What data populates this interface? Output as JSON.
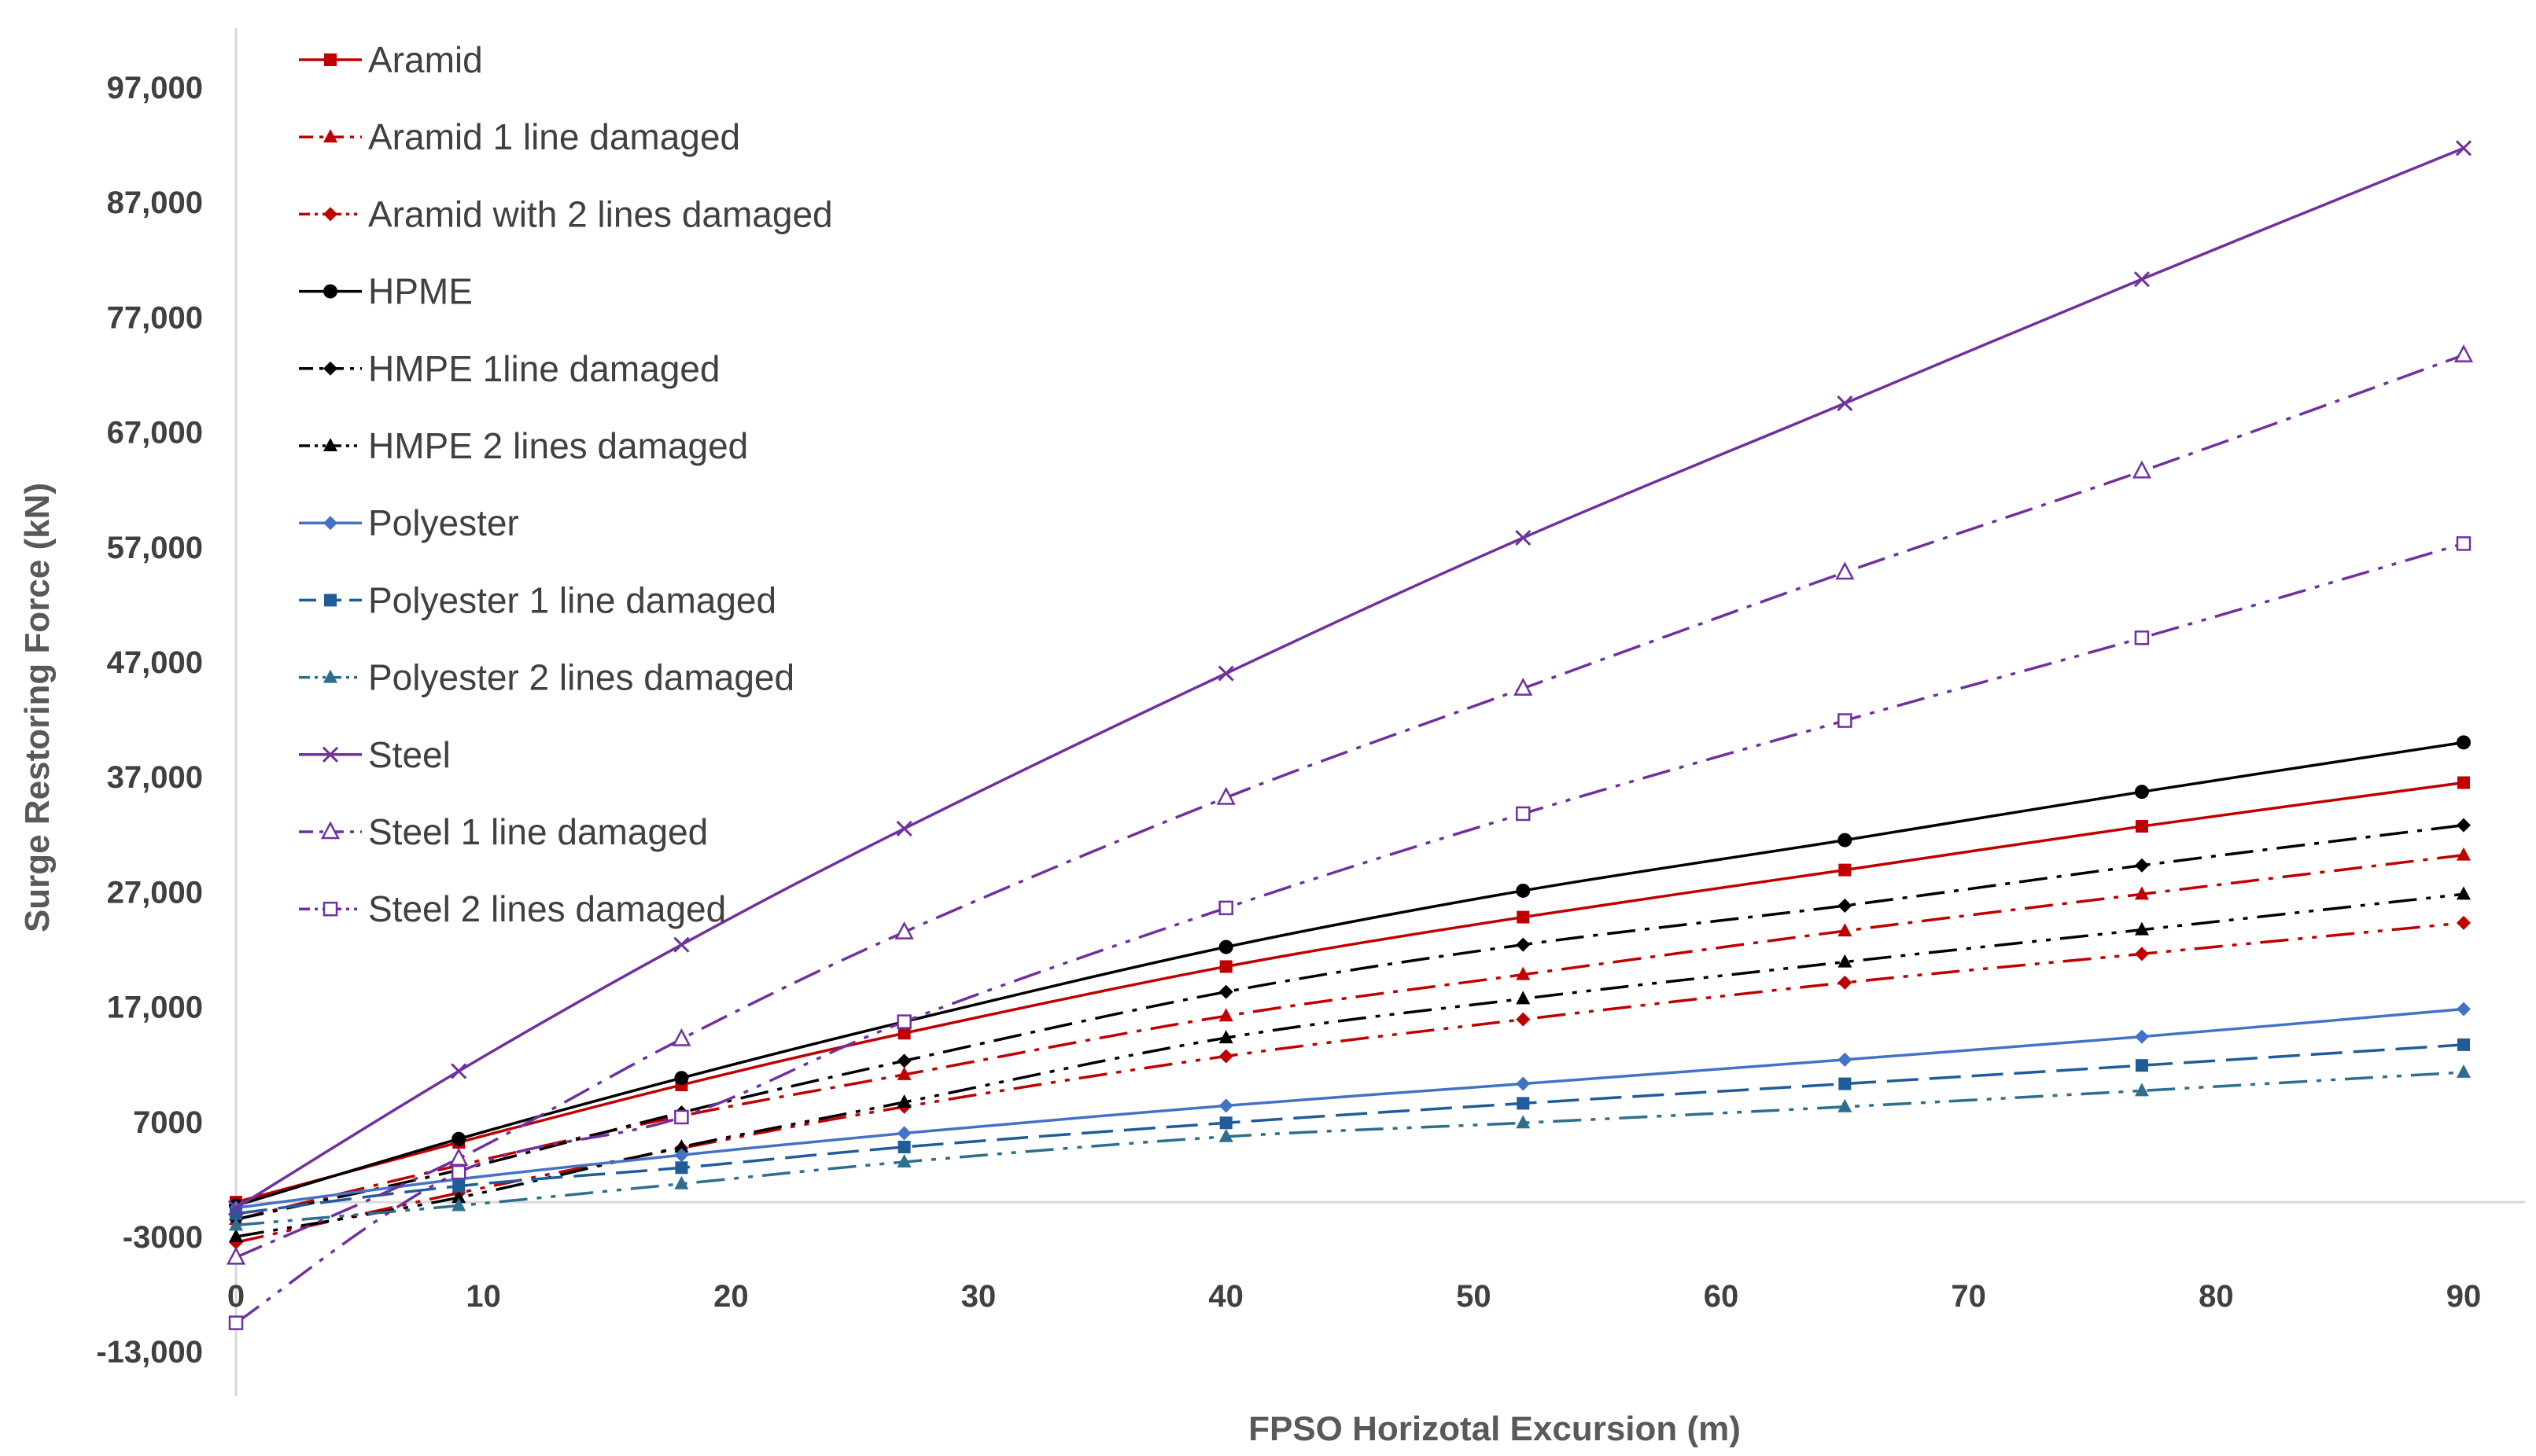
{
  "chart_data": {
    "type": "line",
    "title": "",
    "xlabel": "FPSO Horizotal Excursion (m)",
    "ylabel": "Surge Restoring Force (kN)",
    "xlim": [
      0,
      92
    ],
    "ylim": [
      -13000,
      104000
    ],
    "x_ticks": [
      0,
      10,
      20,
      30,
      40,
      50,
      60,
      70,
      80,
      90
    ],
    "x_tick_labels": [
      "0",
      "10",
      "20",
      "30",
      "40",
      "50",
      "60",
      "70",
      "80",
      "90"
    ],
    "y_ticks": [
      97000,
      87000,
      77000,
      67000,
      57000,
      47000,
      37000,
      27000,
      17000,
      7000,
      -3000,
      -13000
    ],
    "y_tick_labels": [
      "97,000",
      "87,000",
      "77,000",
      "67,000",
      "57,000",
      "47,000",
      "37,000",
      "27,000",
      "17,000",
      "7000",
      "-3000",
      "-13,000"
    ],
    "grid": false,
    "legend_position": "top-left",
    "x": [
      0,
      9,
      18,
      27,
      40,
      52,
      65,
      77,
      90
    ],
    "series": [
      {
        "name": "Aramid",
        "color": "#c00000",
        "dash": "solid",
        "marker": "square",
        "values": [
          0,
          5200,
          10200,
          14700,
          20500,
          24800,
          28900,
          32700,
          36500
        ]
      },
      {
        "name": "Aramid 1 line damaged",
        "color": "#c00000",
        "dash": "dashdot",
        "marker": "triangle",
        "values": [
          -1500,
          3200,
          7500,
          11100,
          16200,
          19800,
          23600,
          26800,
          30200
        ]
      },
      {
        "name": "Aramid with 2 lines damaged",
        "color": "#c00000",
        "dash": "dashdotdot",
        "marker": "diamond",
        "values": [
          -3500,
          800,
          4700,
          8300,
          12700,
          15900,
          19100,
          21600,
          24300
        ]
      },
      {
        "name": "HPME",
        "color": "#000000",
        "dash": "solid",
        "marker": "circle",
        "values": [
          -300,
          5500,
          10800,
          15700,
          22200,
          27100,
          31500,
          35700,
          40000
        ]
      },
      {
        "name": "HMPE 1line damaged",
        "color": "#000000",
        "dash": "dashdot",
        "marker": "diamond",
        "values": [
          -1500,
          2800,
          7800,
          12300,
          18300,
          22400,
          25800,
          29300,
          32800
        ]
      },
      {
        "name": "HMPE 2 lines damaged",
        "color": "#000000",
        "dash": "dashdotdot",
        "marker": "triangle",
        "values": [
          -3000,
          400,
          4800,
          8700,
          14300,
          17700,
          20900,
          23700,
          26800
        ]
      },
      {
        "name": "Polyester",
        "color": "#4472c4",
        "dash": "solid",
        "marker": "diamond",
        "values": [
          -500,
          2000,
          4100,
          6000,
          8400,
          10300,
          12400,
          14400,
          16800
        ]
      },
      {
        "name": "Polyester 1 line damaged",
        "color": "#1f5c99",
        "dash": "longdash",
        "marker": "square",
        "values": [
          -1000,
          1400,
          3000,
          4800,
          6900,
          8600,
          10300,
          11900,
          13700
        ]
      },
      {
        "name": "Polyester 2 lines damaged",
        "color": "#2e6e8e",
        "dash": "dashdotdot",
        "marker": "triangle",
        "values": [
          -2000,
          -300,
          1600,
          3500,
          5700,
          6900,
          8300,
          9700,
          11300
        ]
      },
      {
        "name": "Steel",
        "color": "#7030a0",
        "dash": "solid",
        "marker": "x",
        "values": [
          -500,
          11400,
          22400,
          32500,
          46000,
          57800,
          69500,
          80300,
          91700
        ]
      },
      {
        "name": "Steel 1 line damaged",
        "color": "#7030a0",
        "dash": "dashdot",
        "marker": "open-triangle",
        "values": [
          -4800,
          3800,
          14200,
          23500,
          35200,
          44700,
          54800,
          63600,
          73700
        ]
      },
      {
        "name": "Steel 2 lines damaged",
        "color": "#7030a0",
        "dash": "dashdotdot",
        "marker": "open-square",
        "values": [
          -10500,
          2600,
          7400,
          15700,
          25600,
          33800,
          41900,
          49100,
          57300
        ]
      }
    ]
  }
}
